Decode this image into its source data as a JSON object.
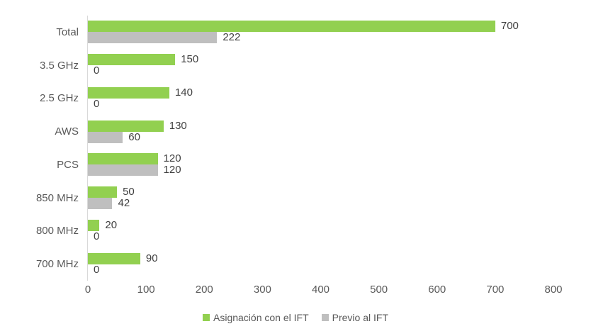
{
  "chart_data": {
    "type": "bar",
    "orientation": "horizontal",
    "title": "",
    "xlabel": "",
    "ylabel": "",
    "categories": [
      "Total",
      "3.5 GHz",
      "2.5 GHz",
      "AWS",
      "PCS",
      "850 MHz",
      "800 MHz",
      "700 MHz"
    ],
    "series": [
      {
        "name": "Asignación con el IFT",
        "color": "#92D050",
        "values": [
          700,
          150,
          140,
          130,
          120,
          50,
          20,
          90
        ]
      },
      {
        "name": "Previo al IFT",
        "color": "#BFBFBF",
        "values": [
          222,
          0,
          0,
          60,
          120,
          42,
          0,
          0
        ]
      }
    ],
    "xlim": [
      0,
      800
    ],
    "x_ticks": [
      0,
      100,
      200,
      300,
      400,
      500,
      600,
      700,
      800
    ],
    "grid": false,
    "data_labels": true,
    "legend_position": "bottom"
  },
  "colors": {
    "series_green": "#92D050",
    "series_gray": "#BFBFBF",
    "axis_line": "#D9D9D9",
    "axis_text": "#595959",
    "data_label_text": "#404040",
    "background": "#FFFFFF"
  }
}
